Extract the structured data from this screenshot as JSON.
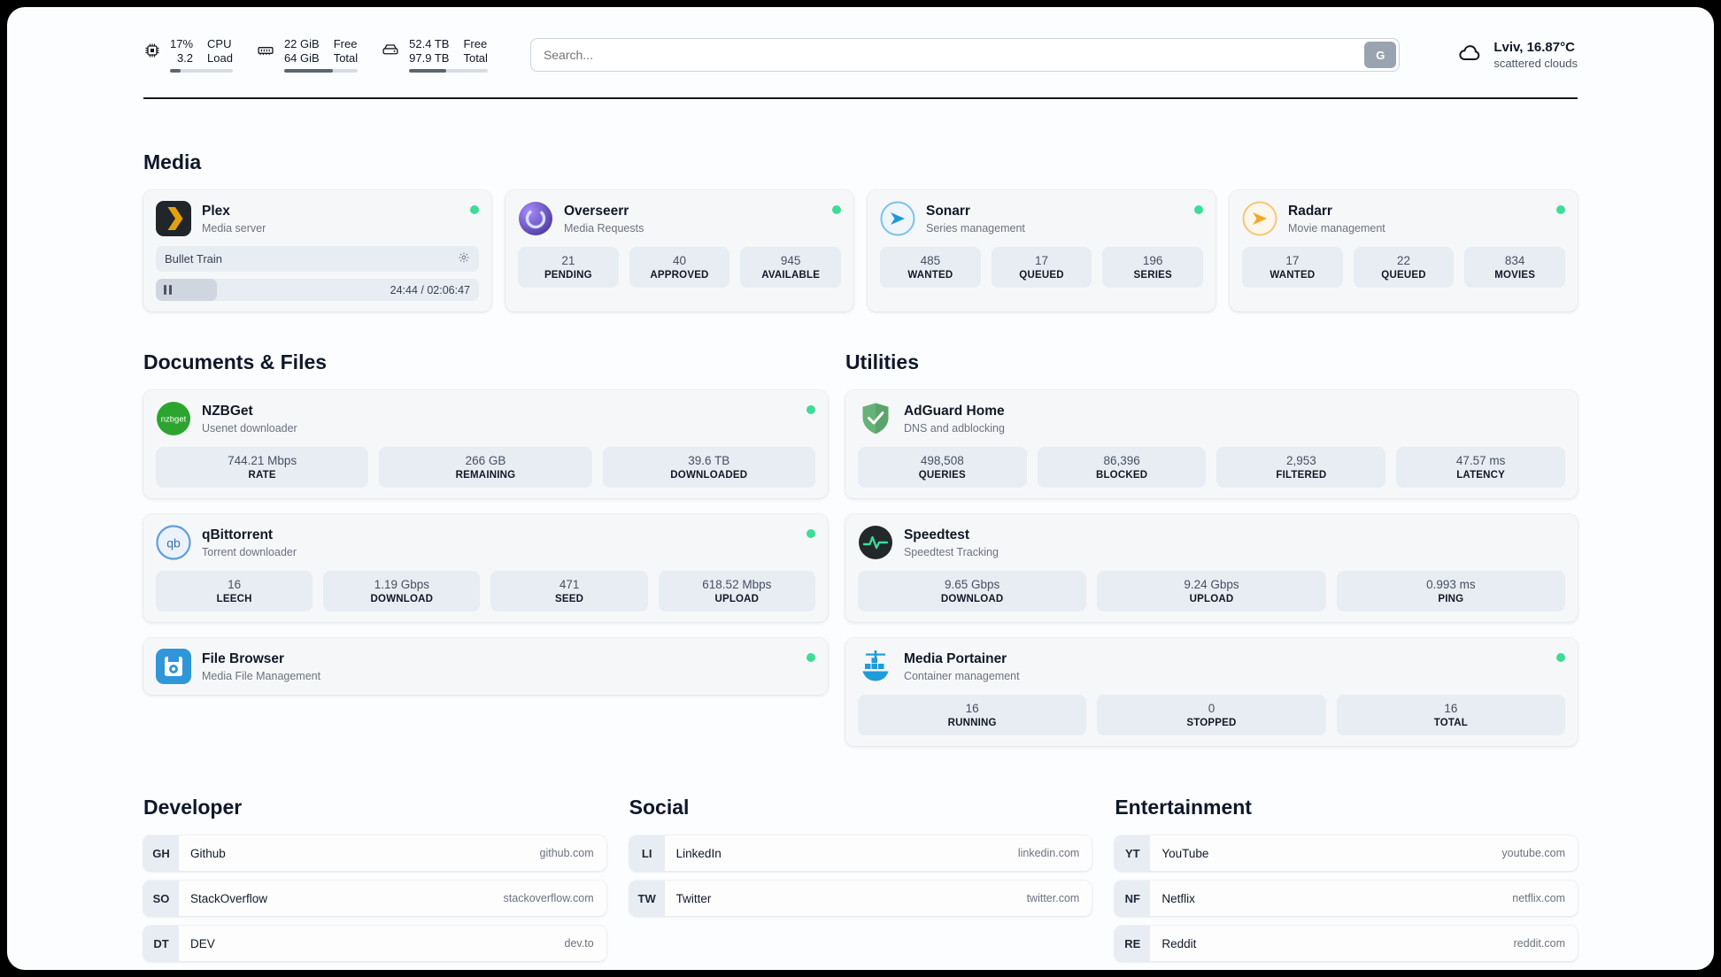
{
  "header": {
    "cpu": {
      "value_top": "17%",
      "value_bottom": "3.2",
      "label_top": "CPU",
      "label_bottom": "Load",
      "bar_percent": "17%"
    },
    "ram": {
      "value_top": "22 GiB",
      "value_bottom": "64 GiB",
      "label_top": "Free",
      "label_bottom": "Total",
      "bar_percent": "66%"
    },
    "disk": {
      "value_top": "52.4 TB",
      "value_bottom": "97.9 TB",
      "label_top": "Free",
      "label_bottom": "Total",
      "bar_percent": "47%"
    },
    "search": {
      "placeholder": "Search...",
      "button_label": "G"
    },
    "weather": {
      "location": "Lviv, 16.87°C",
      "condition": "scattered clouds"
    }
  },
  "sections": {
    "media": "Media",
    "documents": "Documents & Files",
    "utilities": "Utilities",
    "developer": "Developer",
    "social": "Social",
    "entertainment": "Entertainment"
  },
  "apps": {
    "plex": {
      "name": "Plex",
      "subtitle": "Media server",
      "now_playing": {
        "title": "Bullet Train",
        "time": "24:44 / 02:06:47",
        "progress_percent": "19%"
      }
    },
    "overseerr": {
      "name": "Overseerr",
      "subtitle": "Media Requests",
      "stats": [
        {
          "value": "21",
          "label": "PENDING"
        },
        {
          "value": "40",
          "label": "APPROVED"
        },
        {
          "value": "945",
          "label": "AVAILABLE"
        }
      ]
    },
    "sonarr": {
      "name": "Sonarr",
      "subtitle": "Series management",
      "stats": [
        {
          "value": "485",
          "label": "WANTED"
        },
        {
          "value": "17",
          "label": "QUEUED"
        },
        {
          "value": "196",
          "label": "SERIES"
        }
      ]
    },
    "radarr": {
      "name": "Radarr",
      "subtitle": "Movie management",
      "stats": [
        {
          "value": "17",
          "label": "WANTED"
        },
        {
          "value": "22",
          "label": "QUEUED"
        },
        {
          "value": "834",
          "label": "MOVIES"
        }
      ]
    },
    "nzbget": {
      "name": "NZBGet",
      "subtitle": "Usenet downloader",
      "stats": [
        {
          "value": "744.21 Mbps",
          "label": "RATE"
        },
        {
          "value": "266 GB",
          "label": "REMAINING"
        },
        {
          "value": "39.6 TB",
          "label": "DOWNLOADED"
        }
      ]
    },
    "qbittorrent": {
      "name": "qBittorrent",
      "subtitle": "Torrent downloader",
      "stats": [
        {
          "value": "16",
          "label": "LEECH"
        },
        {
          "value": "1.19 Gbps",
          "label": "DOWNLOAD"
        },
        {
          "value": "471",
          "label": "SEED"
        },
        {
          "value": "618.52 Mbps",
          "label": "UPLOAD"
        }
      ]
    },
    "filebrowser": {
      "name": "File Browser",
      "subtitle": "Media File Management"
    },
    "adguard": {
      "name": "AdGuard Home",
      "subtitle": "DNS and adblocking",
      "stats": [
        {
          "value": "498,508",
          "label": "QUERIES"
        },
        {
          "value": "86,396",
          "label": "BLOCKED"
        },
        {
          "value": "2,953",
          "label": "FILTERED"
        },
        {
          "value": "47.57 ms",
          "label": "LATENCY"
        }
      ]
    },
    "speedtest": {
      "name": "Speedtest",
      "subtitle": "Speedtest Tracking",
      "stats": [
        {
          "value": "9.65 Gbps",
          "label": "DOWNLOAD"
        },
        {
          "value": "9.24 Gbps",
          "label": "UPLOAD"
        },
        {
          "value": "0.993 ms",
          "label": "PING"
        }
      ]
    },
    "portainer": {
      "name": "Media Portainer",
      "subtitle": "Container management",
      "stats": [
        {
          "value": "16",
          "label": "RUNNING"
        },
        {
          "value": "0",
          "label": "STOPPED"
        },
        {
          "value": "16",
          "label": "TOTAL"
        }
      ]
    }
  },
  "bookmarks": {
    "developer": [
      {
        "abbr": "GH",
        "name": "Github",
        "domain": "github.com"
      },
      {
        "abbr": "SO",
        "name": "StackOverflow",
        "domain": "stackoverflow.com"
      },
      {
        "abbr": "DT",
        "name": "DEV",
        "domain": "dev.to"
      }
    ],
    "social": [
      {
        "abbr": "LI",
        "name": "LinkedIn",
        "domain": "linkedin.com"
      },
      {
        "abbr": "TW",
        "name": "Twitter",
        "domain": "twitter.com"
      }
    ],
    "entertainment": [
      {
        "abbr": "YT",
        "name": "YouTube",
        "domain": "youtube.com"
      },
      {
        "abbr": "NF",
        "name": "Netflix",
        "domain": "netflix.com"
      },
      {
        "abbr": "RE",
        "name": "Reddit",
        "domain": "reddit.com"
      }
    ]
  },
  "colors": {
    "status_online": "#3ddc97",
    "plex_yellow": "#e5a00d",
    "overseerr_purple": "#6a4fd8",
    "sonarr_blue": "#2196d9",
    "radarr_yellow": "#f5a623",
    "nzbget_green": "#2ca52e",
    "qbittorrent_blue": "#5f9edb",
    "filebrowser_blue": "#2f96d8",
    "adguard_green": "#67b279",
    "speedtest_dark": "#23282b",
    "portainer_blue": "#1f9cd8"
  }
}
